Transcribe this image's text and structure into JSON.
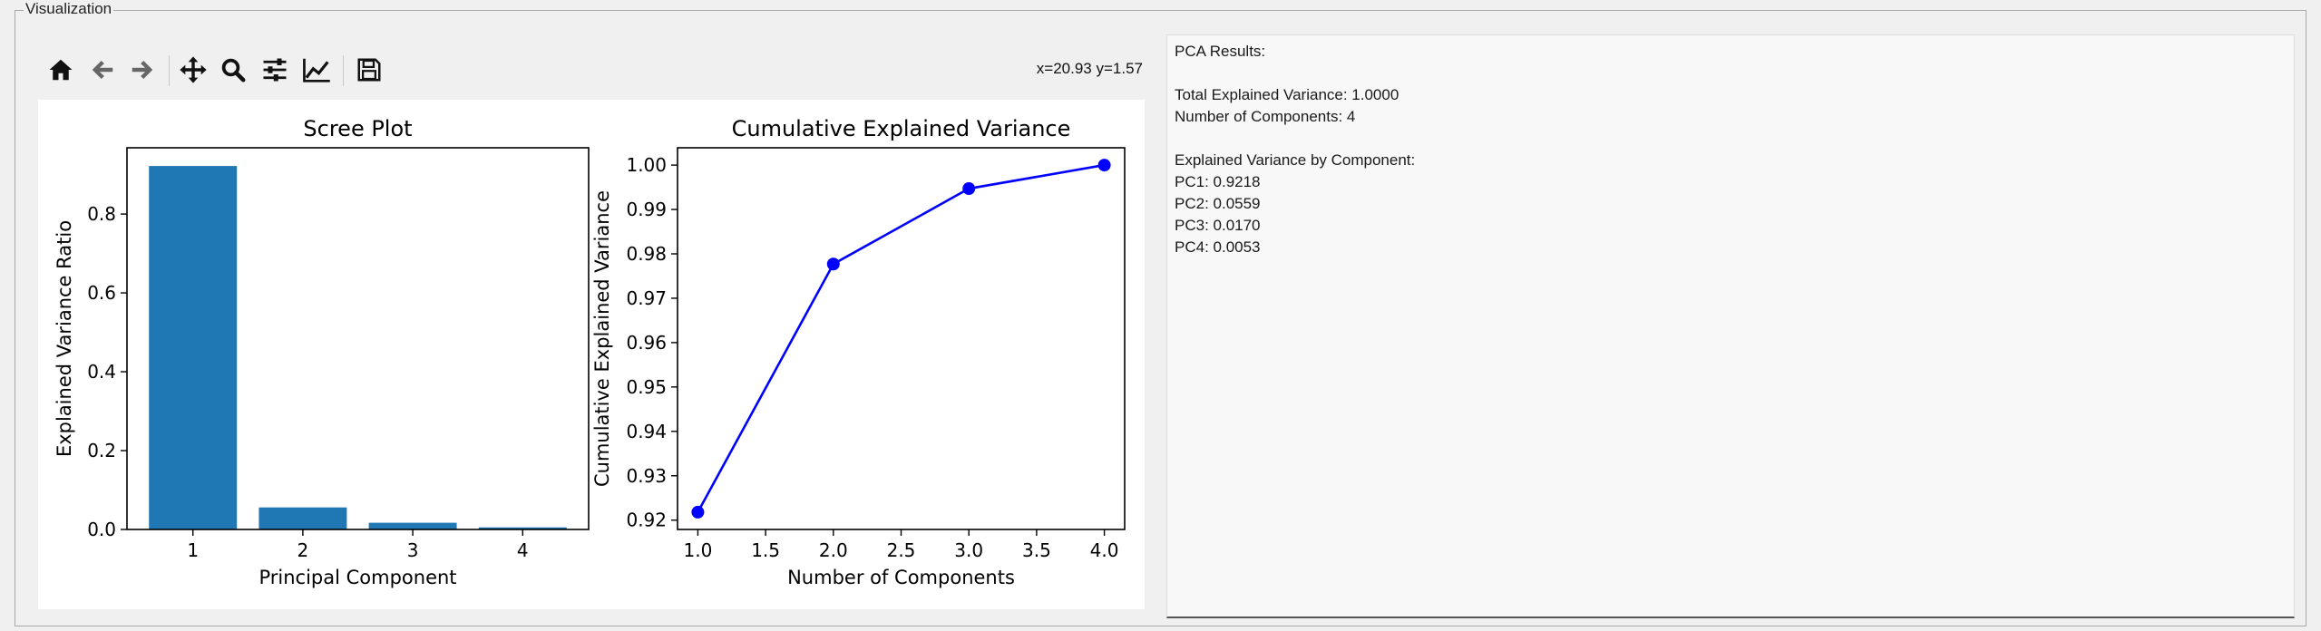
{
  "frame": {
    "title": "Visualization"
  },
  "toolbar": {
    "icons": [
      "home-icon",
      "back-arrow-icon",
      "forward-arrow-icon",
      "pan-icon",
      "zoom-icon",
      "configure-subplots-icon",
      "edit-axes-icon",
      "save-icon"
    ],
    "coords_text": "x=20.93 y=1.57"
  },
  "results": {
    "header": "PCA Results:",
    "total_variance": "Total Explained Variance: 1.0000",
    "num_components": "Number of Components: 4",
    "by_component_header": "Explained Variance by Component:",
    "components": [
      "PC1: 0.9218",
      "PC2: 0.0559",
      "PC3: 0.0170",
      "PC4: 0.0053"
    ]
  },
  "colors": {
    "bar": "#1f77b4",
    "line": "#0000ff"
  },
  "chart_data": [
    {
      "type": "bar",
      "title": "Scree Plot",
      "xlabel": "Principal Component",
      "ylabel": "Explained Variance Ratio",
      "categories": [
        "1",
        "2",
        "3",
        "4"
      ],
      "values": [
        0.9218,
        0.0559,
        0.017,
        0.0053
      ],
      "ylim": [
        0,
        0.968
      ],
      "yticks": [
        0.0,
        0.2,
        0.4,
        0.6,
        0.8
      ],
      "ytick_labels": [
        "0.0",
        "0.2",
        "0.4",
        "0.6",
        "0.8"
      ],
      "grid": false
    },
    {
      "type": "line",
      "title": "Cumulative Explained Variance",
      "xlabel": "Number of Components",
      "ylabel": "Cumulative Explained Variance",
      "x": [
        1,
        2,
        3,
        4
      ],
      "y": [
        0.9218,
        0.9777,
        0.9947,
        1.0
      ],
      "xlim": [
        0.85,
        4.15
      ],
      "ylim": [
        0.9179,
        1.0039
      ],
      "xticks": [
        1.0,
        1.5,
        2.0,
        2.5,
        3.0,
        3.5,
        4.0
      ],
      "xtick_labels": [
        "1.0",
        "1.5",
        "2.0",
        "2.5",
        "3.0",
        "3.5",
        "4.0"
      ],
      "yticks": [
        0.92,
        0.93,
        0.94,
        0.95,
        0.96,
        0.97,
        0.98,
        0.99,
        1.0
      ],
      "ytick_labels": [
        "0.92",
        "0.93",
        "0.94",
        "0.95",
        "0.96",
        "0.97",
        "0.98",
        "0.99",
        "1.00"
      ],
      "marker": "o",
      "grid": false
    }
  ]
}
